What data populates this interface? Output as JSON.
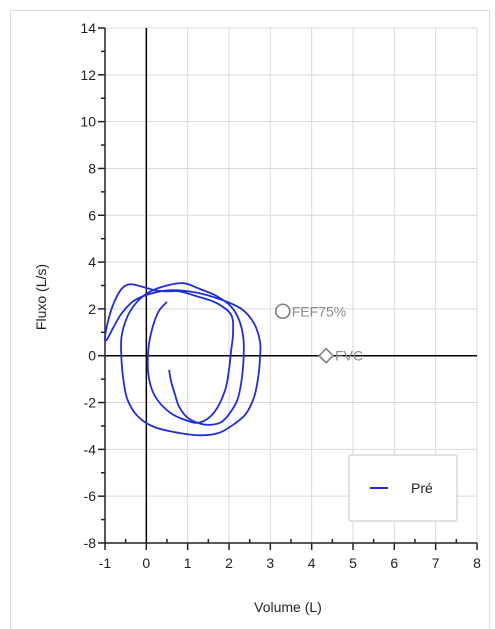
{
  "chart_data": {
    "type": "line",
    "xlabel": "Volume (L)",
    "ylabel": "Fluxo (L/s)",
    "xlim": [
      -1,
      8
    ],
    "ylim": [
      -8,
      14
    ],
    "x_ticks": [
      -1,
      0,
      1,
      2,
      3,
      4,
      5,
      6,
      7,
      8
    ],
    "y_ticks": [
      -8,
      -6,
      -4,
      -2,
      0,
      2,
      4,
      6,
      8,
      10,
      12,
      14
    ],
    "grid": true,
    "legend_position": "bottom-right",
    "colors": {
      "series": "#1f2fd6",
      "grid": "#d9d9d9",
      "axis": "#000000",
      "marker": "#7f7f7f"
    },
    "series": [
      {
        "name": "Pré",
        "color": "#1f2fd6",
        "points": [
          [
            0.55,
            -0.6
          ],
          [
            0.6,
            -1.1
          ],
          [
            0.7,
            -1.7
          ],
          [
            0.8,
            -2.2
          ],
          [
            1.0,
            -2.65
          ],
          [
            1.3,
            -2.9
          ],
          [
            1.55,
            -2.95
          ],
          [
            1.8,
            -2.85
          ],
          [
            2.0,
            -2.5
          ],
          [
            2.2,
            -1.9
          ],
          [
            2.3,
            -1.1
          ],
          [
            2.35,
            -0.2
          ],
          [
            2.35,
            0.7
          ],
          [
            2.25,
            1.5
          ],
          [
            2.05,
            2.1
          ],
          [
            1.7,
            2.55
          ],
          [
            1.3,
            2.85
          ],
          [
            0.9,
            3.1
          ],
          [
            0.5,
            3.0
          ],
          [
            0.1,
            2.75
          ],
          [
            -0.2,
            2.35
          ],
          [
            -0.45,
            1.7
          ],
          [
            -0.6,
            0.8
          ],
          [
            -0.6,
            -0.2
          ],
          [
            -0.55,
            -1.1
          ],
          [
            -0.45,
            -1.9
          ],
          [
            -0.2,
            -2.6
          ],
          [
            0.2,
            -3.05
          ],
          [
            0.8,
            -3.3
          ],
          [
            1.3,
            -3.4
          ],
          [
            1.75,
            -3.3
          ],
          [
            2.1,
            -2.95
          ],
          [
            2.4,
            -2.5
          ],
          [
            2.6,
            -1.8
          ],
          [
            2.7,
            -1.0
          ],
          [
            2.75,
            -0.1
          ],
          [
            2.75,
            0.6
          ],
          [
            2.6,
            1.4
          ],
          [
            2.3,
            2.0
          ],
          [
            1.8,
            2.4
          ],
          [
            1.2,
            2.7
          ],
          [
            0.6,
            2.8
          ],
          [
            0.1,
            2.65
          ],
          [
            -0.3,
            2.35
          ],
          [
            -0.6,
            1.8
          ],
          [
            -0.8,
            1.2
          ],
          [
            -0.95,
            0.7
          ],
          [
            -1.0,
            0.7
          ],
          [
            -0.95,
            1.3
          ],
          [
            -0.8,
            2.2
          ],
          [
            -0.6,
            2.85
          ],
          [
            -0.4,
            3.05
          ],
          [
            -0.1,
            2.95
          ],
          [
            0.2,
            2.8
          ],
          [
            0.5,
            2.75
          ],
          [
            0.8,
            2.75
          ],
          [
            1.2,
            2.55
          ],
          [
            1.7,
            2.25
          ],
          [
            2.05,
            1.75
          ],
          [
            2.1,
            1.0
          ],
          [
            2.05,
            0.2
          ],
          [
            2.0,
            -0.6
          ],
          [
            1.9,
            -1.5
          ],
          [
            1.65,
            -2.4
          ],
          [
            1.3,
            -2.85
          ],
          [
            0.95,
            -2.75
          ],
          [
            0.55,
            -2.4
          ],
          [
            0.2,
            -1.7
          ],
          [
            0.05,
            -0.8
          ],
          [
            0.05,
            0.3
          ],
          [
            0.15,
            1.2
          ],
          [
            0.3,
            1.9
          ],
          [
            0.5,
            2.3
          ]
        ]
      }
    ],
    "markers": [
      {
        "label": "FEF75%",
        "shape": "circle",
        "x": 3.3,
        "y": 1.9
      },
      {
        "label": "FVC",
        "shape": "diamond",
        "x": 4.35,
        "y": 0.0
      }
    ]
  }
}
